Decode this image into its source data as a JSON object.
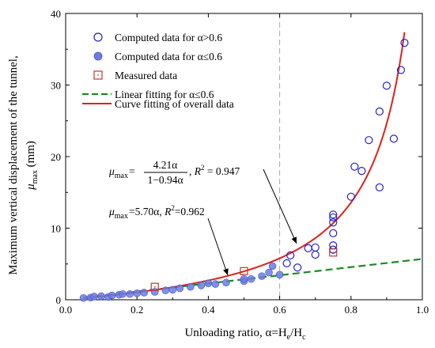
{
  "chart_data": {
    "type": "scatter",
    "xlabel": "Unloading ratio, α=H",
    "xlabel_sub1": "e",
    "xlabel_mid": "/H",
    "xlabel_sub2": "c",
    "ylabel_line1": "Maximum vertical displacement of the tunnel,",
    "ylabel_var": "μ",
    "ylabel_sub": "max",
    "ylabel_unit": " (mm)",
    "xlim": [
      0.0,
      1.0
    ],
    "ylim": [
      0,
      40
    ],
    "x_ticks": [
      "0.0",
      "0.2",
      "0.4",
      "0.6",
      "0.8",
      "1.0"
    ],
    "y_ticks": [
      "0",
      "10",
      "20",
      "30",
      "40"
    ],
    "reference_line_x": 0.6,
    "legend": {
      "placement": "top-left",
      "items": [
        {
          "label": "Computed data for α>0.6"
        },
        {
          "label": "Computed data for α≤0.6"
        },
        {
          "label": "Measured data"
        },
        {
          "label": "Linear fitting for α≤0.6"
        },
        {
          "label": "Curve fitting of overall data"
        }
      ]
    },
    "series": [
      {
        "name": "Computed data for α>0.6",
        "marker": "open-circle",
        "color": "#2222cc",
        "points": [
          [
            0.62,
            5.1
          ],
          [
            0.63,
            6.2
          ],
          [
            0.65,
            4.5
          ],
          [
            0.68,
            7.2
          ],
          [
            0.7,
            7.3
          ],
          [
            0.7,
            6.3
          ],
          [
            0.75,
            11.9
          ],
          [
            0.75,
            11.5
          ],
          [
            0.75,
            10.8
          ],
          [
            0.75,
            9.3
          ],
          [
            0.75,
            7.6
          ],
          [
            0.75,
            7.0
          ],
          [
            0.8,
            14.4
          ],
          [
            0.81,
            18.6
          ],
          [
            0.83,
            18.0
          ],
          [
            0.85,
            22.3
          ],
          [
            0.88,
            15.7
          ],
          [
            0.88,
            26.3
          ],
          [
            0.9,
            29.9
          ],
          [
            0.92,
            22.5
          ],
          [
            0.94,
            32.1
          ],
          [
            0.95,
            35.9
          ]
        ]
      },
      {
        "name": "Computed data for α≤0.6",
        "marker": "filled-circle",
        "color": "#6b7be0",
        "points": [
          [
            0.05,
            0.25
          ],
          [
            0.07,
            0.3
          ],
          [
            0.08,
            0.45
          ],
          [
            0.1,
            0.5
          ],
          [
            0.12,
            0.4
          ],
          [
            0.13,
            0.6
          ],
          [
            0.15,
            0.7
          ],
          [
            0.16,
            0.8
          ],
          [
            0.18,
            0.8
          ],
          [
            0.2,
            0.9
          ],
          [
            0.22,
            1.0
          ],
          [
            0.25,
            1.1
          ],
          [
            0.28,
            1.3
          ],
          [
            0.3,
            1.4
          ],
          [
            0.32,
            1.6
          ],
          [
            0.35,
            1.8
          ],
          [
            0.38,
            2.0
          ],
          [
            0.4,
            2.3
          ],
          [
            0.42,
            2.2
          ],
          [
            0.45,
            2.4
          ],
          [
            0.5,
            2.6
          ],
          [
            0.5,
            2.9
          ],
          [
            0.52,
            2.9
          ],
          [
            0.55,
            3.3
          ],
          [
            0.57,
            3.8
          ],
          [
            0.58,
            4.7
          ],
          [
            0.6,
            3.5
          ]
        ]
      },
      {
        "name": "Measured data",
        "marker": "open-square",
        "color": "#c0392b",
        "points": [
          [
            0.25,
            1.8
          ],
          [
            0.5,
            4.0
          ],
          [
            0.75,
            6.6
          ]
        ]
      }
    ],
    "fits": [
      {
        "name": "Linear fitting for α≤0.6",
        "style": "dashed",
        "color": "#1f8a1f",
        "a": 5.7,
        "x_range": [
          0.05,
          1.0
        ]
      },
      {
        "name": "Curve fitting of overall data",
        "style": "solid",
        "color": "#e0201b",
        "numerator": 4.21,
        "b": 0.94,
        "x_range": [
          0.05,
          0.95
        ]
      }
    ],
    "annotations": [
      {
        "text_mu": "μ",
        "text_sub": "max",
        "text_eq": "=",
        "numerator": "4.21α",
        "denominator": "1−0.94α",
        "text_r": ", R",
        "text_r_sup": "2",
        "text_r_val": " = 0.947",
        "target": [
          0.73,
          7.7
        ]
      },
      {
        "text_mu": "μ",
        "text_sub": "max",
        "text_eq": "=5.70α,",
        "text_r": " R",
        "text_r_sup": "2",
        "text_r_val": "=0.962",
        "target": [
          0.47,
          2.9
        ]
      }
    ]
  }
}
